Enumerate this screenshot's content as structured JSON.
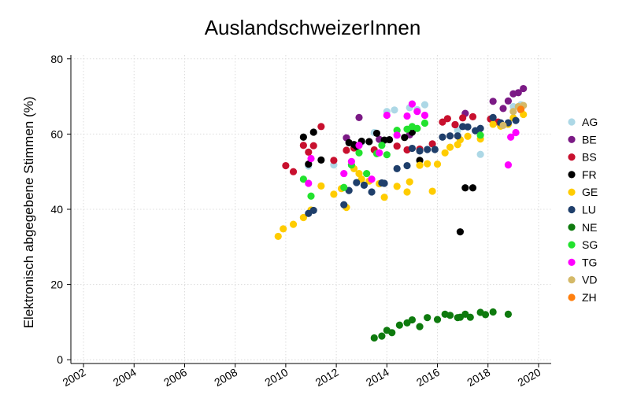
{
  "chart_data": {
    "type": "scatter",
    "title": "AuslandschweizerInnen",
    "xlabel": "",
    "ylabel": "Elektronisch abgegebene Stimmen (%)",
    "xlim": [
      2001.5,
      2020.5
    ],
    "ylim": [
      -1,
      81
    ],
    "x_ticks": [
      2002,
      2004,
      2006,
      2008,
      2010,
      2012,
      2014,
      2016,
      2018,
      2020
    ],
    "x_tick_labels": [
      "2002",
      "2004",
      "2006",
      "2008",
      "2010",
      "2012",
      "2014",
      "2016",
      "2018",
      "2020"
    ],
    "y_ticks": [
      0,
      20,
      40,
      60,
      80
    ],
    "y_tick_labels": [
      "0",
      "20",
      "40",
      "60",
      "80"
    ],
    "grid": true,
    "legend_position": "right",
    "series": [
      {
        "name": "AG",
        "color": "#add8e6",
        "points": [
          [
            2010.9,
            51.5
          ],
          [
            2011.9,
            51.8
          ],
          [
            2013.0,
            57.8
          ],
          [
            2013.5,
            60.4
          ],
          [
            2014.0,
            66.0
          ],
          [
            2014.3,
            66.4
          ],
          [
            2014.9,
            67.0
          ],
          [
            2015.2,
            66.5
          ],
          [
            2015.5,
            67.8
          ],
          [
            2016.8,
            61.0
          ],
          [
            2017.7,
            54.6
          ],
          [
            2019.0,
            67.3
          ],
          [
            2019.3,
            67.8
          ]
        ]
      },
      {
        "name": "BE",
        "color": "#7b1a85",
        "points": [
          [
            2012.4,
            59.0
          ],
          [
            2012.9,
            64.4
          ],
          [
            2013.7,
            58.6
          ],
          [
            2014.9,
            59.8
          ],
          [
            2016.7,
            62.5
          ],
          [
            2017.1,
            65.5
          ],
          [
            2018.2,
            68.7
          ],
          [
            2018.6,
            66.8
          ],
          [
            2018.8,
            68.8
          ],
          [
            2019.0,
            70.7
          ],
          [
            2019.2,
            71.0
          ],
          [
            2019.4,
            72.1
          ]
        ]
      },
      {
        "name": "BS",
        "color": "#c8102e",
        "points": [
          [
            2010.0,
            51.6
          ],
          [
            2010.3,
            50.0
          ],
          [
            2010.7,
            57.0
          ],
          [
            2010.9,
            55.2
          ],
          [
            2011.1,
            56.9
          ],
          [
            2011.4,
            62.0
          ],
          [
            2011.9,
            53.0
          ],
          [
            2012.4,
            55.7
          ],
          [
            2012.7,
            56.3
          ],
          [
            2013.5,
            55.8
          ],
          [
            2014.4,
            56.8
          ],
          [
            2014.8,
            55.8
          ],
          [
            2015.3,
            56.0
          ],
          [
            2015.8,
            57.4
          ],
          [
            2016.2,
            63.2
          ],
          [
            2016.4,
            64.1
          ],
          [
            2016.7,
            62.5
          ],
          [
            2017.0,
            64.3
          ],
          [
            2017.4,
            64.6
          ],
          [
            2018.1,
            64.0
          ],
          [
            2018.4,
            63.2
          ],
          [
            2019.3,
            66.5
          ]
        ]
      },
      {
        "name": "FR",
        "color": "#000000",
        "points": [
          [
            2010.7,
            59.2
          ],
          [
            2010.9,
            52.0
          ],
          [
            2011.1,
            60.5
          ],
          [
            2011.4,
            53.1
          ],
          [
            2012.5,
            57.7
          ],
          [
            2012.7,
            57.2
          ],
          [
            2012.8,
            56.7
          ],
          [
            2013.0,
            58.1
          ],
          [
            2013.3,
            58.0
          ],
          [
            2013.6,
            60.2
          ],
          [
            2013.9,
            58.4
          ],
          [
            2014.1,
            58.5
          ],
          [
            2014.7,
            59.1
          ],
          [
            2015.0,
            60.5
          ],
          [
            2015.3,
            53.0
          ],
          [
            2016.9,
            34.0
          ],
          [
            2017.1,
            45.7
          ],
          [
            2017.4,
            45.7
          ]
        ]
      },
      {
        "name": "GE",
        "color": "#ffcc00",
        "points": [
          [
            2009.7,
            32.8
          ],
          [
            2009.9,
            34.8
          ],
          [
            2010.3,
            36.0
          ],
          [
            2010.7,
            37.8
          ],
          [
            2011.0,
            39.8
          ],
          [
            2011.4,
            46.2
          ],
          [
            2011.9,
            44.0
          ],
          [
            2012.2,
            45.5
          ],
          [
            2012.4,
            40.5
          ],
          [
            2012.7,
            50.8
          ],
          [
            2012.9,
            49.5
          ],
          [
            2013.0,
            48.0
          ],
          [
            2013.3,
            47.5
          ],
          [
            2013.7,
            46.8
          ],
          [
            2013.9,
            43.2
          ],
          [
            2014.4,
            46.1
          ],
          [
            2014.8,
            44.6
          ],
          [
            2014.9,
            47.3
          ],
          [
            2015.3,
            51.7
          ],
          [
            2015.6,
            52.1
          ],
          [
            2015.8,
            44.8
          ],
          [
            2016.0,
            52.0
          ],
          [
            2016.3,
            55.0
          ],
          [
            2016.5,
            56.5
          ],
          [
            2016.8,
            57.2
          ],
          [
            2016.9,
            58.5
          ],
          [
            2017.2,
            59.4
          ],
          [
            2017.7,
            58.7
          ],
          [
            2018.2,
            62.6
          ],
          [
            2018.5,
            62.1
          ],
          [
            2018.8,
            62.6
          ],
          [
            2019.0,
            64.3
          ],
          [
            2019.4,
            65.2
          ]
        ]
      },
      {
        "name": "LU",
        "color": "#1f3f6b",
        "points": [
          [
            2010.9,
            38.9
          ],
          [
            2011.1,
            39.7
          ],
          [
            2012.3,
            41.2
          ],
          [
            2012.5,
            45.0
          ],
          [
            2012.8,
            47.1
          ],
          [
            2013.1,
            46.4
          ],
          [
            2013.4,
            44.6
          ],
          [
            2013.8,
            47.0
          ],
          [
            2013.9,
            46.9
          ],
          [
            2014.4,
            50.8
          ],
          [
            2014.8,
            51.6
          ],
          [
            2015.0,
            56.2
          ],
          [
            2015.3,
            55.5
          ],
          [
            2015.6,
            55.9
          ],
          [
            2015.9,
            55.9
          ],
          [
            2016.2,
            59.2
          ],
          [
            2016.5,
            59.5
          ],
          [
            2016.8,
            59.5
          ],
          [
            2017.0,
            62.0
          ],
          [
            2017.2,
            61.9
          ],
          [
            2017.5,
            60.9
          ],
          [
            2017.7,
            61.5
          ],
          [
            2018.2,
            64.4
          ],
          [
            2018.5,
            63.0
          ],
          [
            2018.8,
            63.0
          ],
          [
            2019.1,
            63.6
          ]
        ]
      },
      {
        "name": "NE",
        "color": "#0e7a0e",
        "points": [
          [
            2013.5,
            5.8
          ],
          [
            2013.8,
            6.3
          ],
          [
            2014.0,
            7.8
          ],
          [
            2014.2,
            7.2
          ],
          [
            2014.5,
            9.2
          ],
          [
            2014.8,
            9.8
          ],
          [
            2015.0,
            10.6
          ],
          [
            2015.3,
            8.8
          ],
          [
            2015.6,
            11.2
          ],
          [
            2016.0,
            10.7
          ],
          [
            2016.3,
            12.1
          ],
          [
            2016.5,
            11.8
          ],
          [
            2016.8,
            11.2
          ],
          [
            2016.9,
            11.3
          ],
          [
            2017.1,
            12.1
          ],
          [
            2017.3,
            11.3
          ],
          [
            2017.7,
            12.6
          ],
          [
            2017.9,
            12.0
          ],
          [
            2018.2,
            12.7
          ],
          [
            2018.8,
            12.1
          ]
        ]
      },
      {
        "name": "SG",
        "color": "#22e22e",
        "points": [
          [
            2010.7,
            48.0
          ],
          [
            2011.0,
            43.5
          ],
          [
            2012.3,
            45.8
          ],
          [
            2012.6,
            51.8
          ],
          [
            2012.9,
            55.0
          ],
          [
            2013.2,
            49.5
          ],
          [
            2013.6,
            54.8
          ],
          [
            2013.8,
            57.0
          ],
          [
            2014.0,
            54.5
          ],
          [
            2014.4,
            61.0
          ],
          [
            2014.8,
            61.3
          ],
          [
            2015.0,
            62.0
          ],
          [
            2015.2,
            61.5
          ],
          [
            2015.5,
            62.9
          ],
          [
            2017.7,
            59.7
          ]
        ]
      },
      {
        "name": "TG",
        "color": "#ff00ff",
        "points": [
          [
            2010.9,
            46.9
          ],
          [
            2011.0,
            53.5
          ],
          [
            2012.3,
            49.5
          ],
          [
            2012.6,
            52.7
          ],
          [
            2012.9,
            57.0
          ],
          [
            2013.4,
            48.0
          ],
          [
            2013.7,
            55.0
          ],
          [
            2014.0,
            65.0
          ],
          [
            2014.4,
            59.7
          ],
          [
            2014.8,
            64.8
          ],
          [
            2015.0,
            68.0
          ],
          [
            2015.2,
            66.0
          ],
          [
            2015.5,
            65.0
          ],
          [
            2018.8,
            51.8
          ],
          [
            2018.9,
            59.2
          ],
          [
            2019.1,
            60.4
          ]
        ]
      },
      {
        "name": "VD",
        "color": "#d4b968",
        "points": [
          [
            2018.6,
            62.3
          ],
          [
            2019.0,
            66.0
          ],
          [
            2019.2,
            67.3
          ],
          [
            2019.4,
            67.6
          ]
        ]
      },
      {
        "name": "ZH",
        "color": "#ff7f0e",
        "points": [
          [
            2019.3,
            66.6
          ]
        ]
      }
    ]
  }
}
